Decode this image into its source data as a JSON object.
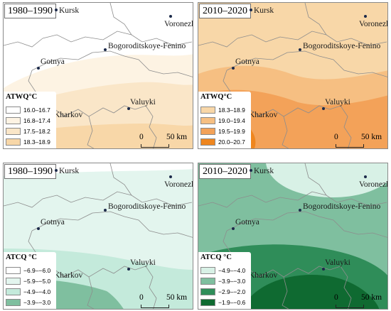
{
  "panels": [
    {
      "period": "1980–1990",
      "legend": {
        "title": "ATWQ°C",
        "items": [
          {
            "label": "16.0–16.7",
            "color": "#ffffff"
          },
          {
            "label": "16.8–17.4",
            "color": "#fdf3e3"
          },
          {
            "label": "17.5–18.2",
            "color": "#fae6c8"
          },
          {
            "label": "18.3–18.9",
            "color": "#f8d7a8"
          }
        ]
      }
    },
    {
      "period": "2010–2020",
      "legend": {
        "title": "ATWQ°C",
        "items": [
          {
            "label": "18.3–18.9",
            "color": "#f8d7a8"
          },
          {
            "label": "19.0–19.4",
            "color": "#f6bf82"
          },
          {
            "label": "19.5–19.9",
            "color": "#f3a259"
          },
          {
            "label": "20.0–20.7",
            "color": "#ef861f"
          }
        ]
      }
    },
    {
      "period": "1980–1990",
      "legend": {
        "title": "ATCQ °C",
        "items": [
          {
            "label": "−6.9–−6.0",
            "color": "#ffffff"
          },
          {
            "label": "−5.9–−5.0",
            "color": "#e3f5ee"
          },
          {
            "label": "−4.9–−4.0",
            "color": "#c4eadb"
          },
          {
            "label": "−3.9–−3.0",
            "color": "#7fbf9f"
          }
        ]
      }
    },
    {
      "period": "2010–2020",
      "legend": {
        "title": "ATCQ °C",
        "items": [
          {
            "label": "−4.9–−4.0",
            "color": "#d8f1e6"
          },
          {
            "label": "−3.9–−3.0",
            "color": "#7fbf9f"
          },
          {
            "label": "−2.9–−2.0",
            "color": "#2f8d59"
          },
          {
            "label": "−1.9–−0.6",
            "color": "#0f6a31"
          }
        ]
      }
    }
  ],
  "cities": {
    "kursk": "Kursk",
    "voronezh": "Voronezh",
    "bogoroditskoye": "Bogoroditskoye-Fenino",
    "gotnya": "Gotnya",
    "valuyki": "Valuyki",
    "kharkov": "Kharkov"
  },
  "scale": {
    "zero": "0",
    "distance": "50 km"
  }
}
